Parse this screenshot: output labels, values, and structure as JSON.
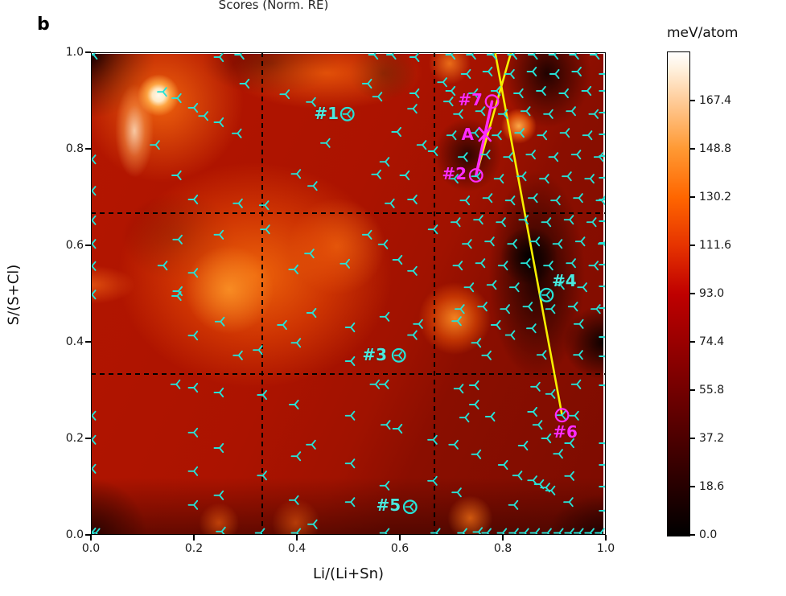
{
  "figure": {
    "panel_label": "b",
    "cropped_top_text": "Scores (Norm. RE)"
  },
  "axes": {
    "xlabel": "Li/(Li+Sn)",
    "ylabel": "S/(S+Cl)",
    "x_tick_labels": [
      "0.0",
      "0.2",
      "0.4",
      "0.6",
      "0.8",
      "1.0"
    ],
    "y_tick_labels": [
      "0.0",
      "0.2",
      "0.4",
      "0.6",
      "0.8",
      "1.0"
    ],
    "xlim": [
      0,
      1
    ],
    "ylim": [
      0,
      1
    ],
    "gridlines": {
      "x": [
        0.333,
        0.667
      ],
      "y": [
        0.333,
        0.667
      ],
      "style": "dashed",
      "color": "#000000"
    }
  },
  "colorbar": {
    "title": "meV/atom",
    "tick_labels": [
      "167.4",
      "148.8",
      "130.2",
      "111.6",
      "93.0",
      "74.4",
      "55.8",
      "37.2",
      "18.6",
      "0.0"
    ],
    "tick_values": [
      167.4,
      148.8,
      130.2,
      111.6,
      93.0,
      74.4,
      55.8,
      37.2,
      18.6,
      0.0
    ],
    "vmin": 0.0,
    "vmax": 186.0,
    "colormap": "gist_heat",
    "gradient_stops": [
      {
        "t": 0.0,
        "color": "#000000"
      },
      {
        "t": 0.1,
        "color": "#260000"
      },
      {
        "t": 0.2,
        "color": "#4c0000"
      },
      {
        "t": 0.3,
        "color": "#730000"
      },
      {
        "t": 0.4,
        "color": "#990000"
      },
      {
        "t": 0.5,
        "color": "#bf0000"
      },
      {
        "t": 0.6,
        "color": "#e63300"
      },
      {
        "t": 0.7,
        "color": "#ff6600"
      },
      {
        "t": 0.8,
        "color": "#ff9933"
      },
      {
        "t": 0.9,
        "color": "#ffcc99"
      },
      {
        "t": 1.0,
        "color": "#ffffff"
      }
    ]
  },
  "colors": {
    "marker_cyan": "#26e2d6",
    "label_cyan": "#4ae9df",
    "magenta": "#ff2bff",
    "yellow": "#f6ee00",
    "grid": "#000000"
  },
  "chart_data": {
    "type": "heatmap",
    "title": "",
    "field": "energy (meV/atom) interpolated over Li/(Li+Sn) vs S/(S+Cl) composition space, gist_heat colormap, 0-186 meV/atom",
    "heatmap_features": {
      "hotspots": [
        {
          "x": 0.13,
          "y": 0.92,
          "approx_value": 186,
          "note": "white maximum"
        },
        {
          "x": 0.32,
          "y": 0.54,
          "approx_value": 150,
          "note": "large orange region"
        },
        {
          "x": 0.71,
          "y": 0.45,
          "approx_value": 150
        },
        {
          "x": 0.835,
          "y": 0.85,
          "approx_value": 155
        },
        {
          "x": 0.0,
          "y": 0.52,
          "approx_value": 140
        },
        {
          "x": 0.46,
          "y": 0.96,
          "approx_value": 140
        }
      ],
      "dark_regions": [
        {
          "x": 0.0,
          "y": 1.0,
          "approx_value": 10
        },
        {
          "x": 0.855,
          "y": 0.58,
          "approx_value": 0
        },
        {
          "x": 0.87,
          "y": 0.42,
          "approx_value": 5
        },
        {
          "x": 0.98,
          "y": 0.4,
          "approx_value": 0
        },
        {
          "x": 0.89,
          "y": 0.96,
          "approx_value": 10
        },
        {
          "x": 0.74,
          "y": 0.79,
          "approx_value": 15
        }
      ]
    },
    "labeled_points": [
      {
        "label": "#1",
        "x": 0.498,
        "y": 0.872,
        "marker": "circle+tri",
        "color": "cyan",
        "label_offset": [
          -26,
          -1
        ]
      },
      {
        "label": "#2",
        "x": 0.748,
        "y": 0.745,
        "marker": "circle",
        "color": "magenta",
        "label_offset": [
          -27,
          -2
        ]
      },
      {
        "label": "#3",
        "x": 0.598,
        "y": 0.372,
        "marker": "circle+tri",
        "color": "cyan",
        "label_offset": [
          -30,
          -1
        ]
      },
      {
        "label": "#4",
        "x": 0.885,
        "y": 0.497,
        "marker": "circle+tri",
        "color": "cyan",
        "label_offset": [
          22,
          -18
        ]
      },
      {
        "label": "#5",
        "x": 0.62,
        "y": 0.058,
        "marker": "circle+tri",
        "color": "cyan",
        "label_offset": [
          -27,
          -2
        ]
      },
      {
        "label": "#6",
        "x": 0.915,
        "y": 0.248,
        "marker": "circle",
        "color": "magenta",
        "label_offset": [
          4,
          21
        ]
      },
      {
        "label": "#7",
        "x": 0.779,
        "y": 0.898,
        "marker": "circle",
        "color": "magenta",
        "label_offset": [
          -27,
          -2
        ]
      },
      {
        "label": "A",
        "x": 0.766,
        "y": 0.83,
        "marker": "x",
        "color": "magenta",
        "label_offset": [
          -22,
          0
        ]
      }
    ],
    "lines": [
      {
        "name": "yellow-line-1",
        "color": "yellow",
        "width": 2.6,
        "points": [
          [
            0.785,
            1.0
          ],
          [
            0.915,
            0.248
          ]
        ]
      },
      {
        "name": "yellow-line-2",
        "color": "yellow",
        "width": 2.6,
        "points": [
          [
            0.816,
            1.0
          ],
          [
            0.748,
            0.745
          ]
        ]
      },
      {
        "name": "magenta-line",
        "color": "magenta",
        "width": 3.4,
        "points": [
          [
            0.779,
            0.898
          ],
          [
            0.748,
            0.745
          ]
        ]
      }
    ],
    "scatter_marker": "tri_left",
    "scatter_points": [
      [
        0.005,
        0.995
      ],
      [
        0.25,
        0.99
      ],
      [
        0.29,
        0.995
      ],
      [
        0.14,
        0.918
      ],
      [
        0.168,
        0.905
      ],
      [
        0.3,
        0.935
      ],
      [
        0.2,
        0.885
      ],
      [
        0.22,
        0.868
      ],
      [
        0.25,
        0.855
      ],
      [
        0.285,
        0.832
      ],
      [
        0.126,
        0.808
      ],
      [
        0.378,
        0.913
      ],
      [
        0.429,
        0.897
      ],
      [
        0.457,
        0.812
      ],
      [
        0.168,
        0.745
      ],
      [
        0.4,
        0.748
      ],
      [
        0.432,
        0.723
      ],
      [
        0.2,
        0.695
      ],
      [
        0.287,
        0.687
      ],
      [
        0.338,
        0.683
      ],
      [
        0.25,
        0.622
      ],
      [
        0.17,
        0.612
      ],
      [
        0.34,
        0.633
      ],
      [
        0.141,
        0.558
      ],
      [
        0.2,
        0.543
      ],
      [
        0.426,
        0.583
      ],
      [
        0.395,
        0.55
      ],
      [
        0.17,
        0.505
      ],
      [
        0.495,
        0.562
      ],
      [
        0.002,
        0.778
      ],
      [
        0.002,
        0.713
      ],
      [
        0.002,
        0.652
      ],
      [
        0.002,
        0.603
      ],
      [
        0.002,
        0.557
      ],
      [
        0.002,
        0.498
      ],
      [
        0.168,
        0.495
      ],
      [
        0.252,
        0.442
      ],
      [
        0.2,
        0.413
      ],
      [
        0.287,
        0.372
      ],
      [
        0.326,
        0.383
      ],
      [
        0.373,
        0.435
      ],
      [
        0.43,
        0.46
      ],
      [
        0.4,
        0.398
      ],
      [
        0.166,
        0.312
      ],
      [
        0.2,
        0.305
      ],
      [
        0.25,
        0.295
      ],
      [
        0.334,
        0.29
      ],
      [
        0.396,
        0.27
      ],
      [
        0.2,
        0.212
      ],
      [
        0.25,
        0.18
      ],
      [
        0.2,
        0.132
      ],
      [
        0.334,
        0.123
      ],
      [
        0.25,
        0.082
      ],
      [
        0.2,
        0.062
      ],
      [
        0.4,
        0.163
      ],
      [
        0.429,
        0.187
      ],
      [
        0.396,
        0.072
      ],
      [
        0.432,
        0.022
      ],
      [
        0.002,
        0.247
      ],
      [
        0.002,
        0.197
      ],
      [
        0.002,
        0.137
      ],
      [
        0.002,
        0.005
      ],
      [
        0.01,
        0.004
      ],
      [
        0.254,
        0.007
      ],
      [
        0.33,
        0.004
      ],
      [
        0.4,
        0.004
      ],
      [
        0.505,
        0.43
      ],
      [
        0.505,
        0.36
      ],
      [
        0.505,
        0.247
      ],
      [
        0.505,
        0.148
      ],
      [
        0.505,
        0.068
      ],
      [
        0.538,
        0.935
      ],
      [
        0.558,
        0.908
      ],
      [
        0.63,
        0.915
      ],
      [
        0.626,
        0.883
      ],
      [
        0.595,
        0.835
      ],
      [
        0.644,
        0.808
      ],
      [
        0.572,
        0.773
      ],
      [
        0.556,
        0.747
      ],
      [
        0.611,
        0.745
      ],
      [
        0.582,
        0.687
      ],
      [
        0.626,
        0.695
      ],
      [
        0.538,
        0.622
      ],
      [
        0.569,
        0.602
      ],
      [
        0.597,
        0.57
      ],
      [
        0.626,
        0.547
      ],
      [
        0.666,
        0.795
      ],
      [
        0.666,
        0.633
      ],
      [
        0.684,
        0.938
      ],
      [
        0.696,
        0.898
      ],
      [
        0.55,
        0.995
      ],
      [
        0.585,
        0.995
      ],
      [
        0.63,
        0.99
      ],
      [
        0.572,
        0.452
      ],
      [
        0.637,
        0.437
      ],
      [
        0.626,
        0.414
      ],
      [
        0.571,
        0.312
      ],
      [
        0.553,
        0.312
      ],
      [
        0.574,
        0.228
      ],
      [
        0.597,
        0.22
      ],
      [
        0.665,
        0.197
      ],
      [
        0.572,
        0.102
      ],
      [
        0.665,
        0.112
      ],
      [
        0.572,
        0.004
      ],
      [
        0.671,
        0.004
      ],
      [
        0.73,
        0.955
      ],
      [
        0.772,
        0.96
      ],
      [
        0.815,
        0.955
      ],
      [
        0.858,
        0.96
      ],
      [
        0.902,
        0.955
      ],
      [
        0.945,
        0.96
      ],
      [
        0.7,
        0.92
      ],
      [
        0.744,
        0.915
      ],
      [
        0.788,
        0.92
      ],
      [
        0.832,
        0.915
      ],
      [
        0.876,
        0.92
      ],
      [
        0.92,
        0.915
      ],
      [
        0.964,
        0.92
      ],
      [
        0.715,
        0.872
      ],
      [
        0.758,
        0.878
      ],
      [
        0.802,
        0.872
      ],
      [
        0.846,
        0.878
      ],
      [
        0.89,
        0.872
      ],
      [
        0.934,
        0.878
      ],
      [
        0.978,
        0.872
      ],
      [
        0.702,
        0.828
      ],
      [
        0.746,
        0.833
      ],
      [
        0.79,
        0.828
      ],
      [
        0.834,
        0.833
      ],
      [
        0.878,
        0.828
      ],
      [
        0.922,
        0.833
      ],
      [
        0.966,
        0.828
      ],
      [
        0.724,
        0.783
      ],
      [
        0.768,
        0.788
      ],
      [
        0.812,
        0.783
      ],
      [
        0.856,
        0.788
      ],
      [
        0.9,
        0.783
      ],
      [
        0.944,
        0.788
      ],
      [
        0.988,
        0.783
      ],
      [
        0.706,
        0.738
      ],
      [
        0.75,
        0.743
      ],
      [
        0.794,
        0.738
      ],
      [
        0.838,
        0.743
      ],
      [
        0.882,
        0.738
      ],
      [
        0.926,
        0.743
      ],
      [
        0.97,
        0.738
      ],
      [
        0.728,
        0.693
      ],
      [
        0.772,
        0.698
      ],
      [
        0.816,
        0.693
      ],
      [
        0.86,
        0.698
      ],
      [
        0.904,
        0.693
      ],
      [
        0.948,
        0.698
      ],
      [
        0.992,
        0.693
      ],
      [
        0.71,
        0.648
      ],
      [
        0.754,
        0.653
      ],
      [
        0.798,
        0.648
      ],
      [
        0.842,
        0.653
      ],
      [
        0.886,
        0.648
      ],
      [
        0.93,
        0.653
      ],
      [
        0.974,
        0.648
      ],
      [
        0.732,
        0.603
      ],
      [
        0.776,
        0.608
      ],
      [
        0.82,
        0.603
      ],
      [
        0.864,
        0.608
      ],
      [
        0.908,
        0.603
      ],
      [
        0.952,
        0.608
      ],
      [
        0.996,
        0.603
      ],
      [
        0.714,
        0.558
      ],
      [
        0.758,
        0.563
      ],
      [
        0.802,
        0.558
      ],
      [
        0.846,
        0.563
      ],
      [
        0.89,
        0.558
      ],
      [
        0.934,
        0.563
      ],
      [
        0.978,
        0.558
      ],
      [
        0.736,
        0.513
      ],
      [
        0.78,
        0.518
      ],
      [
        0.824,
        0.513
      ],
      [
        0.912,
        0.518
      ],
      [
        0.956,
        0.513
      ],
      [
        0.718,
        0.468
      ],
      [
        0.762,
        0.473
      ],
      [
        0.806,
        0.468
      ],
      [
        0.85,
        0.473
      ],
      [
        0.894,
        0.468
      ],
      [
        0.938,
        0.473
      ],
      [
        0.982,
        0.468
      ],
      [
        0.712,
        0.443
      ],
      [
        0.788,
        0.435
      ],
      [
        0.75,
        0.398
      ],
      [
        0.816,
        0.414
      ],
      [
        0.857,
        0.428
      ],
      [
        0.877,
        0.373
      ],
      [
        0.949,
        0.437
      ],
      [
        0.948,
        0.373
      ],
      [
        0.77,
        0.372
      ],
      [
        0.716,
        0.303
      ],
      [
        0.746,
        0.31
      ],
      [
        0.865,
        0.307
      ],
      [
        0.894,
        0.292
      ],
      [
        0.944,
        0.312
      ],
      [
        0.746,
        0.27
      ],
      [
        0.727,
        0.243
      ],
      [
        0.777,
        0.245
      ],
      [
        0.94,
        0.247
      ],
      [
        0.859,
        0.255
      ],
      [
        0.869,
        0.228
      ],
      [
        0.886,
        0.2
      ],
      [
        0.931,
        0.19
      ],
      [
        0.909,
        0.168
      ],
      [
        0.841,
        0.185
      ],
      [
        0.802,
        0.145
      ],
      [
        0.75,
        0.167
      ],
      [
        0.706,
        0.187
      ],
      [
        0.83,
        0.123
      ],
      [
        0.859,
        0.113
      ],
      [
        0.872,
        0.105
      ],
      [
        0.884,
        0.098
      ],
      [
        0.894,
        0.092
      ],
      [
        0.931,
        0.122
      ],
      [
        0.822,
        0.062
      ],
      [
        0.929,
        0.068
      ],
      [
        0.712,
        0.088
      ],
      [
        0.915,
        0.248
      ],
      [
        0.723,
        0.004
      ],
      [
        0.753,
        0.006
      ],
      [
        0.77,
        0.004
      ],
      [
        0.8,
        0.004
      ],
      [
        0.823,
        0.004
      ],
      [
        0.843,
        0.004
      ],
      [
        0.864,
        0.004
      ],
      [
        0.887,
        0.004
      ],
      [
        0.91,
        0.004
      ],
      [
        0.931,
        0.004
      ],
      [
        0.949,
        0.004
      ],
      [
        0.97,
        0.004
      ],
      [
        0.99,
        0.004
      ],
      [
        0.998,
        0.955
      ],
      [
        0.998,
        0.92
      ],
      [
        0.998,
        0.875
      ],
      [
        0.998,
        0.83
      ],
      [
        0.998,
        0.785
      ],
      [
        0.998,
        0.74
      ],
      [
        0.998,
        0.695
      ],
      [
        0.998,
        0.65
      ],
      [
        0.998,
        0.605
      ],
      [
        0.998,
        0.56
      ],
      [
        0.998,
        0.515
      ],
      [
        0.998,
        0.47
      ],
      [
        0.998,
        0.41
      ],
      [
        0.998,
        0.37
      ],
      [
        0.998,
        0.31
      ],
      [
        0.998,
        0.19
      ],
      [
        0.998,
        0.145
      ],
      [
        0.998,
        0.1
      ],
      [
        0.998,
        0.05
      ],
      [
        0.7,
        0.995
      ],
      [
        0.74,
        0.995
      ],
      [
        0.78,
        0.995
      ],
      [
        0.82,
        0.995
      ],
      [
        0.86,
        0.995
      ],
      [
        0.9,
        0.995
      ],
      [
        0.94,
        0.995
      ],
      [
        0.98,
        0.995
      ]
    ]
  }
}
